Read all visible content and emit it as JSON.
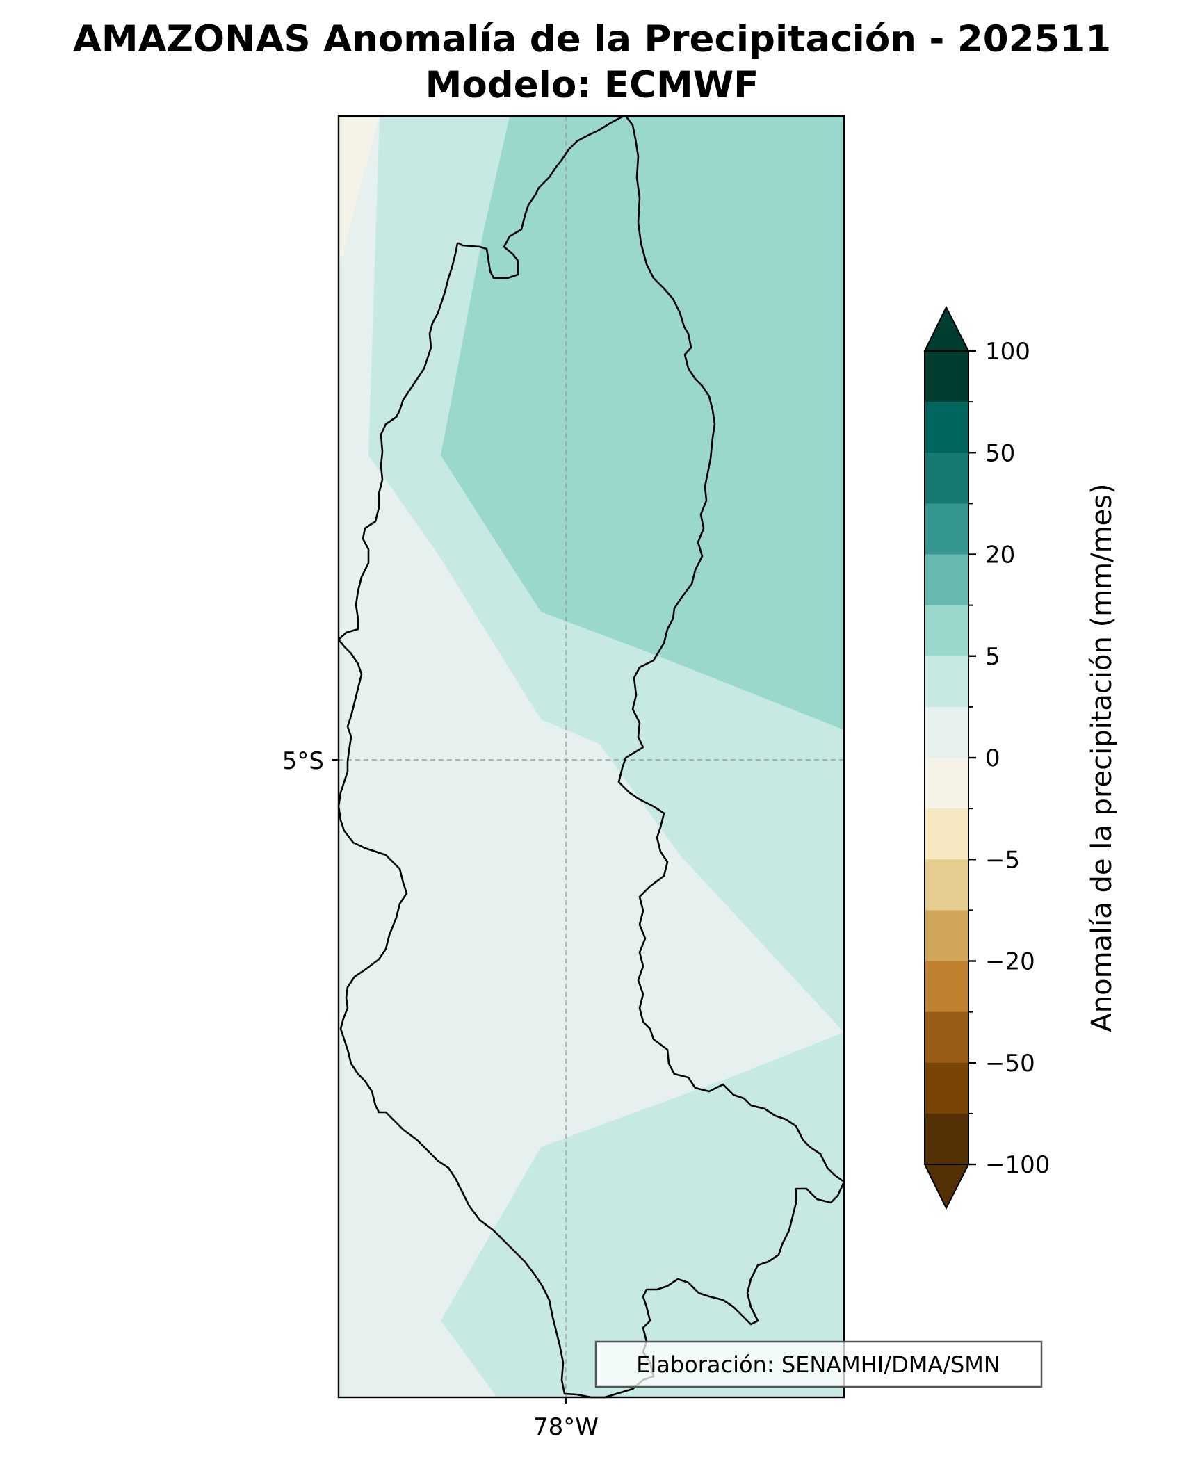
{
  "title_line1": "AMAZONAS Anomalía de la Precipitación - 202511",
  "title_line2": "Modelo: ECMWF",
  "map": {
    "lat_tick_label": "5°S",
    "lon_tick_label": "78°W",
    "credit": "Elaboración: SENAMHI/DMA/SMN",
    "field_classes": [
      {
        "range": "0 a 2",
        "color": "#e6f0ee"
      },
      {
        "range": "2 a 5",
        "color": "#c7e9e3"
      },
      {
        "range": "5 a 10",
        "color": "#9ad8ce"
      },
      {
        "range": "-2 a 0",
        "color": "#f5f2e7"
      }
    ]
  },
  "colorbar": {
    "label": "Anomalía de la precipitación (mm/mes)",
    "extend": "both",
    "tick_labels": [
      "100",
      "50",
      "20",
      "5",
      "0",
      "−5",
      "−20",
      "−50",
      "−100"
    ],
    "colors_top_to_bottom": [
      "#003c30",
      "#01665e",
      "#167a72",
      "#35978f",
      "#65b9ae",
      "#9ad8ce",
      "#c7e9e3",
      "#e6f0ee",
      "#f5f2e7",
      "#f6e8c3",
      "#e5cd8f",
      "#d2a65a",
      "#bf812d",
      "#9a5c17",
      "#7a4407",
      "#543005"
    ],
    "upper_extend_color": "#003c30",
    "lower_extend_color": "#543005"
  }
}
